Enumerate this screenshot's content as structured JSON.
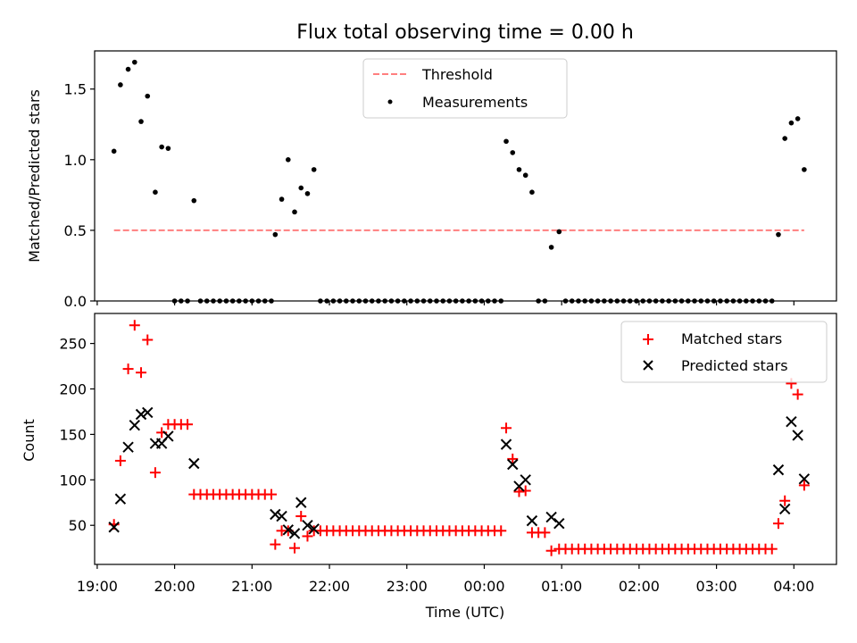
{
  "chart_data": [
    {
      "type": "scatter",
      "title": "Flux total observing time = 0.00 h",
      "xlabel": "",
      "ylabel": "Matched/Predicted stars",
      "ylim": [
        0,
        1.77
      ],
      "yticks": [
        "0.0",
        "0.5",
        "1.0",
        "1.5"
      ],
      "xlim": [
        "19:00",
        "04:30"
      ],
      "grid": false,
      "legend_position": "upper-center",
      "series": [
        {
          "name": "Threshold",
          "kind": "dashed-line",
          "color": "#ff7f7f",
          "x": [
            "19:13",
            "04:08"
          ],
          "y": [
            0.5,
            0.5
          ]
        },
        {
          "name": "Measurements",
          "kind": "dot",
          "color": "#000000",
          "points": [
            [
              "19:13",
              1.06
            ],
            [
              "19:18",
              1.53
            ],
            [
              "19:24",
              1.64
            ],
            [
              "19:29",
              1.69
            ],
            [
              "19:34",
              1.27
            ],
            [
              "19:39",
              1.45
            ],
            [
              "19:45",
              0.77
            ],
            [
              "19:50",
              1.09
            ],
            [
              "19:55",
              1.08
            ],
            [
              "20:00",
              0.0
            ],
            [
              "20:05",
              0.0
            ],
            [
              "20:10",
              0.0
            ],
            [
              "20:15",
              0.71
            ],
            [
              "20:20",
              0.0
            ],
            [
              "20:25",
              0.0
            ],
            [
              "20:30",
              0.0
            ],
            [
              "20:35",
              0.0
            ],
            [
              "20:40",
              0.0
            ],
            [
              "20:45",
              0.0
            ],
            [
              "20:50",
              0.0
            ],
            [
              "20:55",
              0.0
            ],
            [
              "21:00",
              0.0
            ],
            [
              "21:05",
              0.0
            ],
            [
              "21:10",
              0.0
            ],
            [
              "21:15",
              0.0
            ],
            [
              "21:18",
              0.47
            ],
            [
              "21:23",
              0.72
            ],
            [
              "21:28",
              1.0
            ],
            [
              "21:33",
              0.63
            ],
            [
              "21:38",
              0.8
            ],
            [
              "21:43",
              0.76
            ],
            [
              "21:48",
              0.93
            ],
            [
              "21:53",
              0.0
            ],
            [
              "21:58",
              0.0
            ],
            [
              "22:03",
              0.0
            ],
            [
              "22:08",
              0.0
            ],
            [
              "22:13",
              0.0
            ],
            [
              "22:18",
              0.0
            ],
            [
              "22:23",
              0.0
            ],
            [
              "22:28",
              0.0
            ],
            [
              "22:33",
              0.0
            ],
            [
              "22:38",
              0.0
            ],
            [
              "22:43",
              0.0
            ],
            [
              "22:48",
              0.0
            ],
            [
              "22:53",
              0.0
            ],
            [
              "22:58",
              0.0
            ],
            [
              "23:03",
              0.0
            ],
            [
              "23:08",
              0.0
            ],
            [
              "23:13",
              0.0
            ],
            [
              "23:18",
              0.0
            ],
            [
              "23:23",
              0.0
            ],
            [
              "23:28",
              0.0
            ],
            [
              "23:33",
              0.0
            ],
            [
              "23:38",
              0.0
            ],
            [
              "23:43",
              0.0
            ],
            [
              "23:48",
              0.0
            ],
            [
              "23:53",
              0.0
            ],
            [
              "23:58",
              0.0
            ],
            [
              "00:03",
              0.0
            ],
            [
              "00:08",
              0.0
            ],
            [
              "00:13",
              0.0
            ],
            [
              "00:17",
              1.13
            ],
            [
              "00:22",
              1.05
            ],
            [
              "00:27",
              0.93
            ],
            [
              "00:32",
              0.89
            ],
            [
              "00:37",
              0.77
            ],
            [
              "00:42",
              0.0
            ],
            [
              "00:47",
              0.0
            ],
            [
              "00:52",
              0.38
            ],
            [
              "00:58",
              0.49
            ],
            [
              "01:03",
              0.0
            ],
            [
              "01:08",
              0.0
            ],
            [
              "01:13",
              0.0
            ],
            [
              "01:18",
              0.0
            ],
            [
              "01:23",
              0.0
            ],
            [
              "01:28",
              0.0
            ],
            [
              "01:33",
              0.0
            ],
            [
              "01:38",
              0.0
            ],
            [
              "01:43",
              0.0
            ],
            [
              "01:48",
              0.0
            ],
            [
              "01:53",
              0.0
            ],
            [
              "01:58",
              0.0
            ],
            [
              "02:03",
              0.0
            ],
            [
              "02:08",
              0.0
            ],
            [
              "02:13",
              0.0
            ],
            [
              "02:18",
              0.0
            ],
            [
              "02:23",
              0.0
            ],
            [
              "02:28",
              0.0
            ],
            [
              "02:33",
              0.0
            ],
            [
              "02:38",
              0.0
            ],
            [
              "02:43",
              0.0
            ],
            [
              "02:48",
              0.0
            ],
            [
              "02:53",
              0.0
            ],
            [
              "02:58",
              0.0
            ],
            [
              "03:03",
              0.0
            ],
            [
              "03:08",
              0.0
            ],
            [
              "03:13",
              0.0
            ],
            [
              "03:18",
              0.0
            ],
            [
              "03:23",
              0.0
            ],
            [
              "03:28",
              0.0
            ],
            [
              "03:33",
              0.0
            ],
            [
              "03:38",
              0.0
            ],
            [
              "03:43",
              0.0
            ],
            [
              "03:48",
              0.47
            ],
            [
              "03:53",
              1.15
            ],
            [
              "03:58",
              1.26
            ],
            [
              "04:03",
              1.29
            ],
            [
              "04:08",
              0.93
            ]
          ]
        }
      ]
    },
    {
      "type": "scatter",
      "title": "",
      "xlabel": "Time (UTC)",
      "ylabel": "Count",
      "ylim": [
        7,
        283
      ],
      "yticks": [
        "50",
        "100",
        "150",
        "200",
        "250"
      ],
      "xlim": [
        "19:00",
        "04:30"
      ],
      "xticks": [
        "19:00",
        "20:00",
        "21:00",
        "22:00",
        "23:00",
        "00:00",
        "01:00",
        "02:00",
        "03:00",
        "04:00"
      ],
      "grid": false,
      "legend_position": "upper-right",
      "series": [
        {
          "name": "Matched stars",
          "kind": "plus",
          "color": "#ff0000",
          "points": [
            [
              "19:13",
              51
            ],
            [
              "19:18",
              121
            ],
            [
              "19:24",
              222
            ],
            [
              "19:29",
              270
            ],
            [
              "19:34",
              218
            ],
            [
              "19:39",
              254
            ],
            [
              "19:45",
              108
            ],
            [
              "19:50",
              152
            ],
            [
              "19:55",
              161
            ],
            [
              "20:00",
              161
            ],
            [
              "20:05",
              161
            ],
            [
              "20:10",
              161
            ],
            [
              "20:15",
              84
            ],
            [
              "20:20",
              84
            ],
            [
              "20:25",
              84
            ],
            [
              "20:30",
              84
            ],
            [
              "20:35",
              84
            ],
            [
              "20:40",
              84
            ],
            [
              "20:45",
              84
            ],
            [
              "20:50",
              84
            ],
            [
              "20:55",
              84
            ],
            [
              "21:00",
              84
            ],
            [
              "21:05",
              84
            ],
            [
              "21:10",
              84
            ],
            [
              "21:15",
              84
            ],
            [
              "21:18",
              29
            ],
            [
              "21:23",
              44
            ],
            [
              "21:28",
              44
            ],
            [
              "21:33",
              25
            ],
            [
              "21:38",
              60
            ],
            [
              "21:43",
              38
            ],
            [
              "21:48",
              44
            ],
            [
              "21:53",
              44
            ],
            [
              "21:58",
              44
            ],
            [
              "22:03",
              44
            ],
            [
              "22:08",
              44
            ],
            [
              "22:13",
              44
            ],
            [
              "22:18",
              44
            ],
            [
              "22:23",
              44
            ],
            [
              "22:28",
              44
            ],
            [
              "22:33",
              44
            ],
            [
              "22:38",
              44
            ],
            [
              "22:43",
              44
            ],
            [
              "22:48",
              44
            ],
            [
              "22:53",
              44
            ],
            [
              "22:58",
              44
            ],
            [
              "23:03",
              44
            ],
            [
              "23:08",
              44
            ],
            [
              "23:13",
              44
            ],
            [
              "23:18",
              44
            ],
            [
              "23:23",
              44
            ],
            [
              "23:28",
              44
            ],
            [
              "23:33",
              44
            ],
            [
              "23:38",
              44
            ],
            [
              "23:43",
              44
            ],
            [
              "23:48",
              44
            ],
            [
              "23:53",
              44
            ],
            [
              "23:58",
              44
            ],
            [
              "00:03",
              44
            ],
            [
              "00:08",
              44
            ],
            [
              "00:13",
              44
            ],
            [
              "00:17",
              157
            ],
            [
              "00:22",
              123
            ],
            [
              "00:27",
              87
            ],
            [
              "00:32",
              88
            ],
            [
              "00:37",
              42
            ],
            [
              "00:42",
              42
            ],
            [
              "00:47",
              42
            ],
            [
              "00:52",
              22
            ],
            [
              "00:58",
              24
            ],
            [
              "01:03",
              24
            ],
            [
              "01:08",
              24
            ],
            [
              "01:13",
              24
            ],
            [
              "01:18",
              24
            ],
            [
              "01:23",
              24
            ],
            [
              "01:28",
              24
            ],
            [
              "01:33",
              24
            ],
            [
              "01:38",
              24
            ],
            [
              "01:43",
              24
            ],
            [
              "01:48",
              24
            ],
            [
              "01:53",
              24
            ],
            [
              "01:58",
              24
            ],
            [
              "02:03",
              24
            ],
            [
              "02:08",
              24
            ],
            [
              "02:13",
              24
            ],
            [
              "02:18",
              24
            ],
            [
              "02:23",
              24
            ],
            [
              "02:28",
              24
            ],
            [
              "02:33",
              24
            ],
            [
              "02:38",
              24
            ],
            [
              "02:43",
              24
            ],
            [
              "02:48",
              24
            ],
            [
              "02:53",
              24
            ],
            [
              "02:58",
              24
            ],
            [
              "03:03",
              24
            ],
            [
              "03:08",
              24
            ],
            [
              "03:13",
              24
            ],
            [
              "03:18",
              24
            ],
            [
              "03:23",
              24
            ],
            [
              "03:28",
              24
            ],
            [
              "03:33",
              24
            ],
            [
              "03:38",
              24
            ],
            [
              "03:43",
              24
            ],
            [
              "03:48",
              52
            ],
            [
              "03:53",
              77
            ],
            [
              "03:58",
              206
            ],
            [
              "04:03",
              194
            ],
            [
              "04:08",
              94
            ]
          ]
        },
        {
          "name": "Predicted stars",
          "kind": "x",
          "color": "#000000",
          "points": [
            [
              "19:13",
              48
            ],
            [
              "19:18",
              79
            ],
            [
              "19:24",
              136
            ],
            [
              "19:29",
              160
            ],
            [
              "19:34",
              172
            ],
            [
              "19:39",
              174
            ],
            [
              "19:45",
              140
            ],
            [
              "19:50",
              140
            ],
            [
              "19:55",
              148
            ],
            [
              "20:15",
              118
            ],
            [
              "21:18",
              62
            ],
            [
              "21:23",
              60
            ],
            [
              "21:28",
              45
            ],
            [
              "21:33",
              41
            ],
            [
              "21:38",
              75
            ],
            [
              "21:43",
              50
            ],
            [
              "21:48",
              46
            ],
            [
              "00:17",
              139
            ],
            [
              "00:22",
              117
            ],
            [
              "00:27",
              93
            ],
            [
              "00:32",
              100
            ],
            [
              "00:37",
              55
            ],
            [
              "00:52",
              59
            ],
            [
              "00:58",
              52
            ],
            [
              "03:48",
              111
            ],
            [
              "03:53",
              68
            ],
            [
              "03:58",
              164
            ],
            [
              "04:03",
              149
            ],
            [
              "04:08",
              101
            ]
          ]
        }
      ]
    }
  ]
}
